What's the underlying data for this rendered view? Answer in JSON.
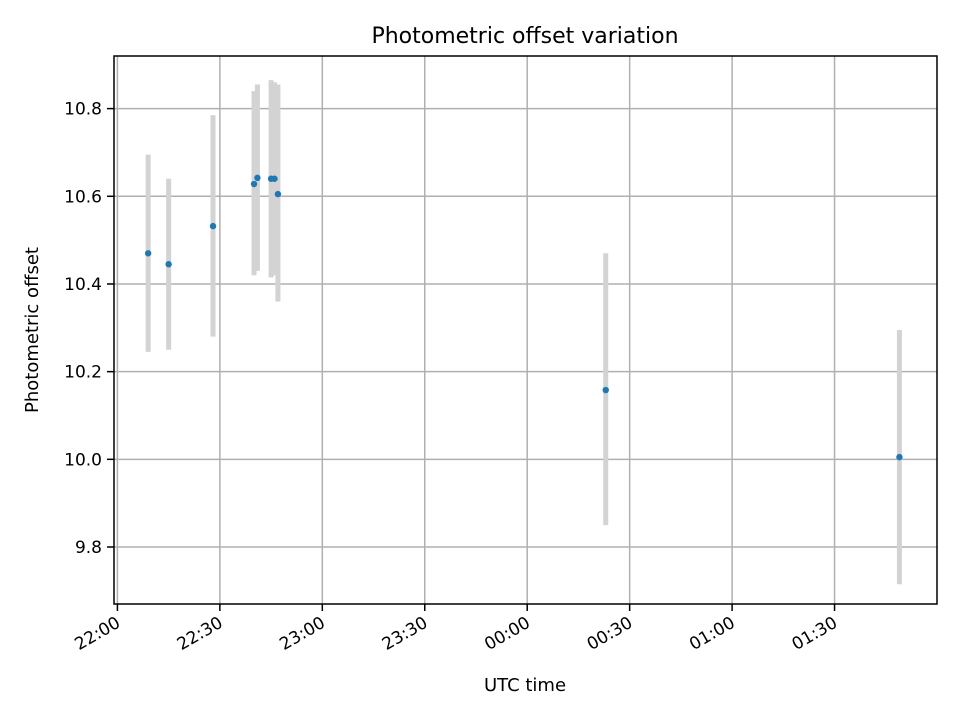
{
  "chart_data": {
    "type": "scatter",
    "title": "Photometric offset variation",
    "xlabel": "UTC time",
    "ylabel": "Photometric offset",
    "xlim": [
      "2000-01-01 21:59:00",
      "2000-01-02 02:00:00"
    ],
    "ylim": [
      9.67,
      10.92
    ],
    "grid": true,
    "x_ticks": [
      "22:00",
      "22:30",
      "23:00",
      "23:30",
      "00:00",
      "00:30",
      "01:00",
      "01:30"
    ],
    "x_tick_times": [
      "2000-01-01 22:00:00",
      "2000-01-01 22:30:00",
      "2000-01-01 23:00:00",
      "2000-01-01 23:30:00",
      "2000-01-02 00:00:00",
      "2000-01-02 00:30:00",
      "2000-01-02 01:00:00",
      "2000-01-02 01:30:00"
    ],
    "y_ticks": [
      9.8,
      10.0,
      10.2,
      10.4,
      10.6,
      10.8
    ],
    "y_tick_labels": [
      "9.8",
      "10.0",
      "10.2",
      "10.4",
      "10.6",
      "10.8"
    ],
    "series": [
      {
        "marker_color": "#1f77b4",
        "errorbar_color": "#d3d3d3",
        "points": [
          {
            "x": "2000-01-01 22:09:00",
            "y": 10.47,
            "yerr_low": 10.245,
            "yerr_high": 10.695
          },
          {
            "x": "2000-01-01 22:15:00",
            "y": 10.445,
            "yerr_low": 10.25,
            "yerr_high": 10.64
          },
          {
            "x": "2000-01-01 22:28:00",
            "y": 10.532,
            "yerr_low": 10.28,
            "yerr_high": 10.785
          },
          {
            "x": "2000-01-01 22:40:00",
            "y": 10.628,
            "yerr_low": 10.42,
            "yerr_high": 10.84
          },
          {
            "x": "2000-01-01 22:41:00",
            "y": 10.642,
            "yerr_low": 10.43,
            "yerr_high": 10.855
          },
          {
            "x": "2000-01-01 22:45:00",
            "y": 10.64,
            "yerr_low": 10.415,
            "yerr_high": 10.865
          },
          {
            "x": "2000-01-01 22:46:00",
            "y": 10.64,
            "yerr_low": 10.42,
            "yerr_high": 10.86
          },
          {
            "x": "2000-01-01 22:47:00",
            "y": 10.605,
            "yerr_low": 10.36,
            "yerr_high": 10.855
          },
          {
            "x": "2000-01-02 00:23:00",
            "y": 10.158,
            "yerr_low": 9.85,
            "yerr_high": 10.47
          },
          {
            "x": "2000-01-02 01:49:00",
            "y": 10.005,
            "yerr_low": 9.715,
            "yerr_high": 10.295
          }
        ]
      }
    ]
  }
}
